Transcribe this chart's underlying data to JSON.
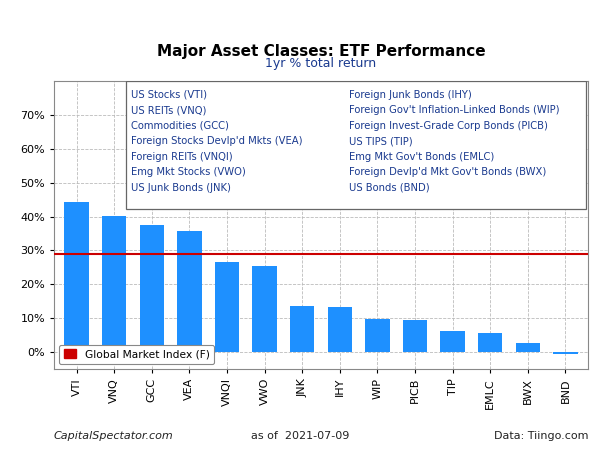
{
  "title": "Major Asset Classes: ETF Performance",
  "subtitle": "1yr % total return",
  "categories": [
    "VTI",
    "VNQ",
    "GCC",
    "VEA",
    "VNQI",
    "VWO",
    "JNK",
    "IHY",
    "WIP",
    "PICB",
    "TIP",
    "EMLC",
    "BWX",
    "BND"
  ],
  "values": [
    44.3,
    40.2,
    37.5,
    35.8,
    26.5,
    25.3,
    13.5,
    13.3,
    9.7,
    9.4,
    6.2,
    5.6,
    2.8,
    -0.6
  ],
  "bar_color": "#1E90FF",
  "reference_line": 29.0,
  "reference_color": "#CC0000",
  "reference_label": "Global Market Index (F)",
  "ylim": [
    -5,
    80
  ],
  "yticks": [
    0,
    10,
    20,
    30,
    40,
    50,
    60,
    70
  ],
  "ytick_labels": [
    "0%",
    "10%",
    "20%",
    "30%",
    "40%",
    "50%",
    "60%",
    "70%"
  ],
  "footer_left": "CapitalSpectator.com",
  "footer_center": "as of  2021-07-09",
  "footer_right": "Data: Tiingo.com",
  "legend_col1": [
    "US Stocks (VTI)",
    "US REITs (VNQ)",
    "Commodities (GCC)",
    "Foreign Stocks Devlp'd Mkts (VEA)",
    "Foreign REITs (VNQI)",
    "Emg Mkt Stocks (VWO)",
    "US Junk Bonds (JNK)"
  ],
  "legend_col2": [
    "Foreign Junk Bonds (IHY)",
    "Foreign Gov't Inflation-Linked Bonds (WIP)",
    "Foreign Invest-Grade Corp Bonds (PICB)",
    "US TIPS (TIP)",
    "Emg Mkt Gov't Bonds (EMLC)",
    "Foreign Devlp'd Mkt Gov't Bonds (BWX)",
    "US Bonds (BND)"
  ],
  "legend_text_color": "#1A3A8F",
  "bg_color": "#FFFFFF",
  "grid_color": "#BBBBBB",
  "title_fontsize": 11,
  "subtitle_fontsize": 9,
  "tick_fontsize": 8,
  "legend_fontsize": 7.2,
  "footer_fontsize": 8
}
